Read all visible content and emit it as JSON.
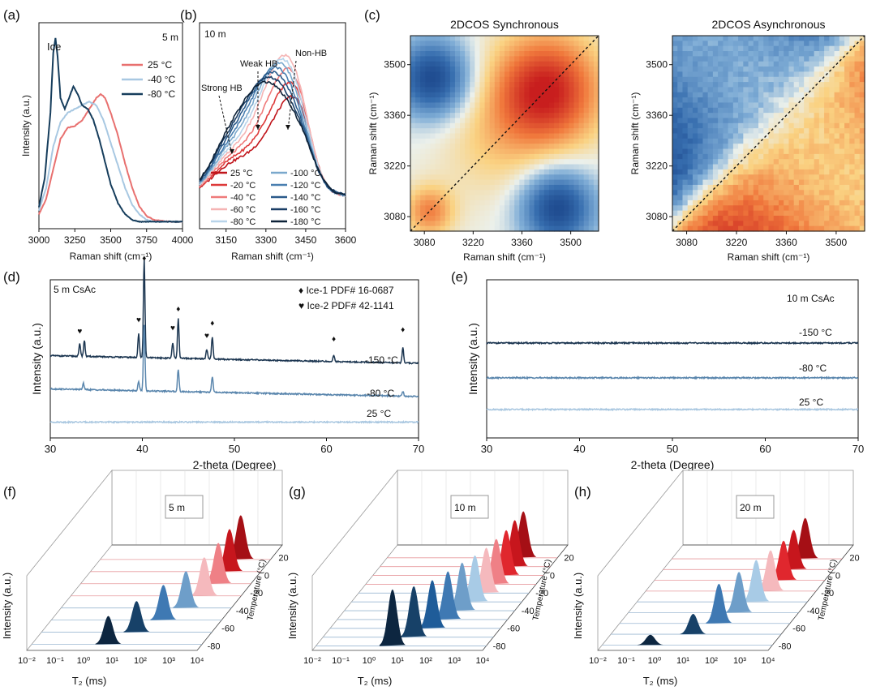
{
  "chart_data": [
    {
      "panel": "(a)",
      "type": "line",
      "annotation": "5 m",
      "peak_label": "Ice",
      "xlabel": "Raman shift (cm⁻¹)",
      "ylabel": "Intensity (a.u.)",
      "xlim": [
        3000,
        4000
      ],
      "xticks": [
        "3000",
        "3250",
        "3500",
        "3750",
        "4000"
      ],
      "series": [
        {
          "name": "25 °C",
          "color": "#e8706f",
          "x": [
            3000,
            3050,
            3100,
            3150,
            3200,
            3250,
            3300,
            3350,
            3400,
            3430,
            3460,
            3500,
            3550,
            3600,
            3650,
            3700,
            3750,
            3800,
            3900,
            4000
          ],
          "y": [
            0.06,
            0.14,
            0.3,
            0.46,
            0.52,
            0.53,
            0.56,
            0.62,
            0.68,
            0.7,
            0.68,
            0.6,
            0.48,
            0.33,
            0.2,
            0.1,
            0.05,
            0.03,
            0.02,
            0.02
          ]
        },
        {
          "name": "-40 °C",
          "color": "#a8c8e2",
          "x": [
            3000,
            3050,
            3100,
            3150,
            3200,
            3250,
            3300,
            3350,
            3400,
            3450,
            3500,
            3550,
            3600,
            3650,
            3700,
            3750,
            3800,
            3900,
            4000
          ],
          "y": [
            0.08,
            0.2,
            0.42,
            0.55,
            0.6,
            0.62,
            0.64,
            0.66,
            0.64,
            0.56,
            0.44,
            0.32,
            0.2,
            0.11,
            0.06,
            0.03,
            0.02,
            0.02,
            0.02
          ]
        },
        {
          "name": "-80 °C",
          "color": "#163d5c",
          "x": [
            3000,
            3040,
            3080,
            3100,
            3115,
            3130,
            3150,
            3180,
            3210,
            3240,
            3270,
            3300,
            3340,
            3380,
            3420,
            3460,
            3500,
            3550,
            3600,
            3650,
            3700,
            3800,
            4000
          ],
          "y": [
            0.1,
            0.25,
            0.6,
            0.92,
            1.0,
            0.9,
            0.68,
            0.62,
            0.68,
            0.74,
            0.7,
            0.64,
            0.62,
            0.56,
            0.46,
            0.34,
            0.22,
            0.12,
            0.06,
            0.03,
            0.02,
            0.02,
            0.02
          ]
        }
      ]
    },
    {
      "panel": "(b)",
      "type": "line",
      "annotation": "10 m",
      "labels": [
        "Strong HB",
        "Weak HB",
        "Non-HB"
      ],
      "xlabel": "Raman shift (cm⁻¹)",
      "xlim": [
        3050,
        3600
      ],
      "xticks": [
        "3150",
        "3300",
        "3450",
        "3600"
      ],
      "series": [
        {
          "name": "25 °C",
          "color": "#c0151b",
          "peak": 0.62
        },
        {
          "name": "-20 °C",
          "color": "#dd3a3a",
          "peak": 0.66
        },
        {
          "name": "-40 °C",
          "color": "#ef7a7a",
          "peak": 0.7
        },
        {
          "name": "-60 °C",
          "color": "#f5b4b4",
          "peak": 0.74
        },
        {
          "name": "-80 °C",
          "color": "#b8d4ea",
          "peak": 0.7
        },
        {
          "name": "-100 °C",
          "color": "#7aa8cc",
          "peak": 0.66
        },
        {
          "name": "-120 °C",
          "color": "#4a7fb0",
          "peak": 0.62
        },
        {
          "name": "-140 °C",
          "color": "#2a5a8a",
          "peak": 0.58
        },
        {
          "name": "-160 °C",
          "color": "#1a3e66",
          "peak": 0.54
        },
        {
          "name": "-180 °C",
          "color": "#0d2238",
          "peak": 0.5
        }
      ]
    },
    {
      "panel": "(c)",
      "type": "heatmap",
      "plots": [
        {
          "title": "2DCOS Synchronous",
          "xlabel": "Raman shift (cm⁻¹)",
          "ylabel": "Raman shift (cm⁻¹)",
          "ticks": [
            "3080",
            "3220",
            "3360",
            "3500"
          ]
        },
        {
          "title": "2DCOS Asynchronous",
          "xlabel": "Raman shift (cm⁻¹)",
          "ylabel": "Raman shift (cm⁻¹)",
          "ticks": [
            "3080",
            "3220",
            "3360",
            "3500"
          ]
        }
      ]
    },
    {
      "panel": "(d)",
      "type": "line",
      "annotation": "5 m CsAc",
      "legend": [
        "♦ Ice-1 PDF# 16-0687",
        "♥ Ice-2 PDF# 42-1141"
      ],
      "xlabel": "2-theta (Degree)",
      "ylabel": "Intensity (a.u.)",
      "xlim": [
        30,
        70
      ],
      "xticks": [
        "30",
        "40",
        "50",
        "60",
        "70"
      ],
      "series": [
        {
          "name": "-150 °C",
          "color": "#1b3550",
          "peaks": [
            [
              33.2,
              0.08
            ],
            [
              33.7,
              0.1
            ],
            [
              39.6,
              0.15
            ],
            [
              40.2,
              0.62
            ],
            [
              43.3,
              0.1
            ],
            [
              43.9,
              0.25
            ],
            [
              47.0,
              0.06
            ],
            [
              47.6,
              0.14
            ],
            [
              60.8,
              0.04
            ],
            [
              68.3,
              0.1
            ]
          ]
        },
        {
          "name": "-80 °C",
          "color": "#5a86ad",
          "peaks": [
            [
              33.6,
              0.04
            ],
            [
              39.6,
              0.06
            ],
            [
              40.2,
              0.42
            ],
            [
              43.9,
              0.14
            ],
            [
              47.6,
              0.1
            ],
            [
              68.3,
              0.03
            ]
          ]
        },
        {
          "name": "25 °C",
          "color": "#a9c7e0",
          "peaks": []
        }
      ]
    },
    {
      "panel": "(e)",
      "type": "line",
      "annotation": "10 m CsAc",
      "xlabel": "2-theta (Degree)",
      "ylabel": "Intensity (a.u.)",
      "xlim": [
        30,
        70
      ],
      "xticks": [
        "30",
        "40",
        "50",
        "60",
        "70"
      ],
      "series": [
        {
          "name": "-150 °C",
          "color": "#1b3550"
        },
        {
          "name": "-80 °C",
          "color": "#5a86ad"
        },
        {
          "name": "25 °C",
          "color": "#a9c7e0"
        }
      ]
    },
    {
      "panel": "(f)",
      "type": "area",
      "annotation": "5 m",
      "xlabel": "T₂ (ms)",
      "ylabel": "Intensity (a.u.)",
      "zlabel": "Temperature (°C)",
      "xticks": [
        "10⁻²",
        "10⁻¹",
        "10⁰",
        "10¹",
        "10²",
        "10³",
        "10⁴"
      ],
      "zticks": [
        "20",
        "0",
        "-20",
        "-40",
        "-60",
        "-80"
      ],
      "peaks": [
        {
          "log_t2": 0.7,
          "height": 0.5
        },
        {
          "log_t2": 1.35,
          "height": 0.55
        },
        {
          "log_t2": 1.95,
          "height": 0.62
        },
        {
          "log_t2": 2.4,
          "height": 0.65
        },
        {
          "log_t2": 2.7,
          "height": 0.68
        },
        {
          "log_t2": 2.85,
          "height": 0.72
        },
        {
          "log_t2": 2.9,
          "height": 0.75
        },
        {
          "log_t2": 2.95,
          "height": 0.78
        }
      ]
    },
    {
      "panel": "(g)",
      "type": "area",
      "annotation": "10 m",
      "xlabel": "T₂ (ms)",
      "ylabel": "Intensity (a.u.)",
      "zlabel": "Temperature (°C)",
      "xticks": [
        "10⁻²",
        "10⁻¹",
        "10⁰",
        "10¹",
        "10²",
        "10³",
        "10⁴"
      ],
      "zticks": [
        "20",
        "0",
        "-20",
        "-40",
        "-60",
        "-80"
      ],
      "peaks": [
        {
          "log_t2": 0.7,
          "height": 1.0
        },
        {
          "log_t2": 1.2,
          "height": 0.9
        },
        {
          "log_t2": 1.6,
          "height": 0.85
        },
        {
          "log_t2": 1.9,
          "height": 0.85
        },
        {
          "log_t2": 2.15,
          "height": 0.85
        },
        {
          "log_t2": 2.35,
          "height": 0.82
        },
        {
          "log_t2": 2.5,
          "height": 0.8
        },
        {
          "log_t2": 2.6,
          "height": 0.8
        },
        {
          "log_t2": 2.7,
          "height": 0.8
        },
        {
          "log_t2": 2.75,
          "height": 0.82
        },
        {
          "log_t2": 2.8,
          "height": 0.82
        }
      ]
    },
    {
      "panel": "(h)",
      "type": "area",
      "annotation": "20 m",
      "xlabel": "T₂ (ms)",
      "ylabel": "Intensity (a.u.)",
      "zlabel": "Temperature (°C)",
      "xticks": [
        "10⁻²",
        "10⁻¹",
        "10⁰",
        "10¹",
        "10²",
        "10³",
        "10⁴"
      ],
      "zticks": [
        "20",
        "0",
        "-20",
        "-40",
        "-60",
        "-80"
      ],
      "peaks": [
        {
          "log_t2": -0.3,
          "height": 0.18
        },
        {
          "log_t2": 0.9,
          "height": 0.36
        },
        {
          "log_t2": 1.5,
          "height": 0.7
        },
        {
          "log_t2": 1.9,
          "height": 0.72
        },
        {
          "log_t2": 2.2,
          "height": 0.74
        },
        {
          "log_t2": 2.4,
          "height": 0.72
        },
        {
          "log_t2": 2.55,
          "height": 0.7
        },
        {
          "log_t2": 2.6,
          "height": 0.7
        },
        {
          "log_t2": 2.7,
          "height": 0.72
        }
      ]
    }
  ]
}
